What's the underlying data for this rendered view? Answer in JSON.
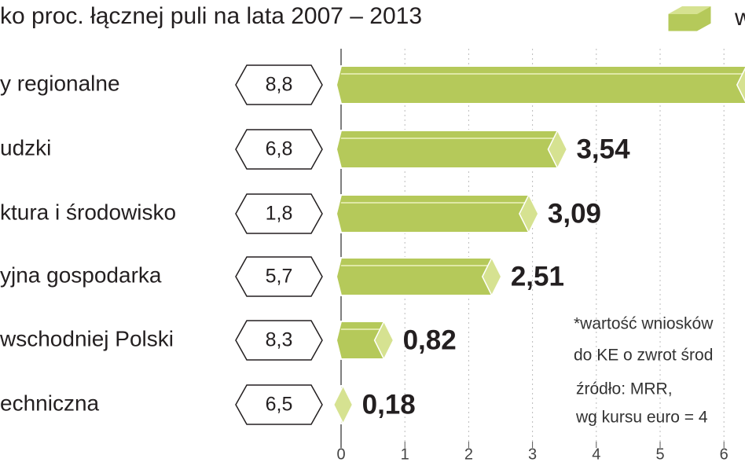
{
  "chart_data": {
    "type": "bar",
    "orientation": "horizontal",
    "title": "ko proc. łącznej puli na lata 2007 – 2013",
    "categories": [
      "y regionalne",
      "udzki",
      "ktura i środowisko",
      "yjna gospodarka",
      "wschodniej Polski",
      "echniczna"
    ],
    "share_labels": [
      "8,8",
      "6,8",
      "1,8",
      "5,7",
      "8,3",
      "6,5"
    ],
    "series": [
      {
        "name": "w",
        "color": "#b5c95a",
        "values": [
          6.5,
          3.54,
          3.09,
          2.51,
          0.82,
          0.18
        ],
        "value_labels": [
          null,
          "3,54",
          "3,09",
          "2,51",
          "0,82",
          "0,18"
        ]
      }
    ],
    "xlim": [
      0,
      6.33
    ],
    "xticks": [
      0,
      1,
      2,
      3,
      4,
      5,
      6
    ],
    "grid": true,
    "legend": "top-right",
    "annotations": [
      "*wartość wniosków",
      "do KE o zwrot środ",
      "źródło: MRR,",
      "wg kursu euro = 4"
    ]
  }
}
